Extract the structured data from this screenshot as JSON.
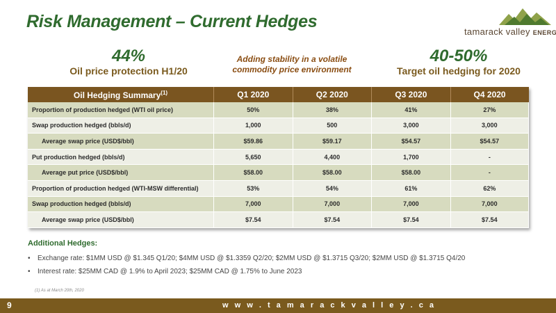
{
  "title": "Risk Management – Current Hedges",
  "logo": {
    "name": "tamarack valley",
    "suffix": "ENERGY",
    "icon": "mountains-logo-icon"
  },
  "stats": {
    "left_value": "44%",
    "left_label": "Oil price protection H1/20",
    "center_text_line1": "Adding stability in a volatile",
    "center_text_line2": "commodity price environment",
    "right_value": "40-50%",
    "right_label": "Target oil hedging for 2020"
  },
  "table": {
    "header_label": "Oil Hedging Summary",
    "header_sup": "(1)",
    "columns": [
      "Q1 2020",
      "Q2 2020",
      "Q3 2020",
      "Q4 2020"
    ],
    "rows": [
      {
        "label": "Proportion of production hedged (WTI oil price)",
        "values": [
          "50%",
          "38%",
          "41%",
          "27%"
        ]
      },
      {
        "label": "Swap production hedged (bbls/d)",
        "values": [
          "1,000",
          "500",
          "3,000",
          "3,000"
        ]
      },
      {
        "label": "Average swap price (USD$/bbl)",
        "values": [
          "$59.86",
          "$59.17",
          "$54.57",
          "$54.57"
        ]
      },
      {
        "label": "Put production hedged (bbls/d)",
        "values": [
          "5,650",
          "4,400",
          "1,700",
          "-"
        ]
      },
      {
        "label": "Average put price (USD$/bbl)",
        "values": [
          "$58.00",
          "$58.00",
          "$58.00",
          "-"
        ]
      },
      {
        "label": "Proportion of production hedged (WTI-MSW differential)",
        "values": [
          "53%",
          "54%",
          "61%",
          "62%"
        ]
      },
      {
        "label": "Swap production hedged (bbls/d)",
        "values": [
          "7,000",
          "7,000",
          "7,000",
          "7,000"
        ]
      },
      {
        "label": "Average swap price (USD$/bbl)",
        "values": [
          "$7.54",
          "$7.54",
          "$7.54",
          "$7.54"
        ]
      }
    ]
  },
  "additional": {
    "heading": "Additional Hedges:",
    "bullets": [
      "Exchange rate: $1MM USD @ $1.345 Q1/20; $4MM USD @ $1.3359 Q2/20; $2MM USD @ $1.3715 Q3/20; $2MM USD @ $1.3715 Q4/20",
      "Interest rate: $25MM CAD @ 1.9% to April 2023; $25MM CAD @ 1.75% to June 2023"
    ]
  },
  "footnote": "(1) As at March 20th, 2020",
  "footer": {
    "page": "9",
    "website": "w w w . t a m a r a c k v a l l e y . c a"
  },
  "colors": {
    "green": "#2f6b2e",
    "brown": "#7a5a1e",
    "row_dark": "#d7dbbf",
    "row_light": "#eeefe6"
  }
}
